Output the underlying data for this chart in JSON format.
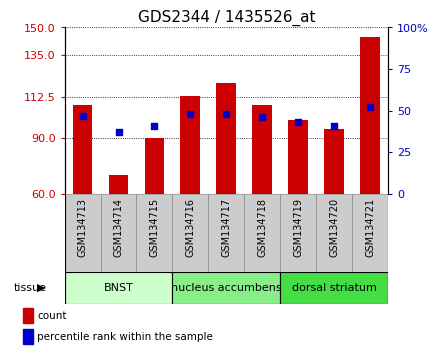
{
  "title": "GDS2344 / 1435526_at",
  "samples": [
    "GSM134713",
    "GSM134714",
    "GSM134715",
    "GSM134716",
    "GSM134717",
    "GSM134718",
    "GSM134719",
    "GSM134720",
    "GSM134721"
  ],
  "count_values": [
    108,
    70,
    90,
    113,
    120,
    108,
    100,
    95,
    145
  ],
  "percentile_values": [
    47,
    37,
    41,
    48,
    48,
    46,
    43,
    41,
    52
  ],
  "ylim_left": [
    60,
    150
  ],
  "ylim_right": [
    0,
    100
  ],
  "yticks_left": [
    60,
    90,
    112.5,
    135,
    150
  ],
  "yticks_right": [
    0,
    25,
    50,
    75,
    100
  ],
  "ytick_labels_right": [
    "0",
    "25",
    "50",
    "75",
    "100%"
  ],
  "bar_color": "#cc0000",
  "dot_color": "#0000cc",
  "tissue_groups": [
    {
      "label": "BNST",
      "start": 0,
      "end": 3,
      "color": "#ccffcc"
    },
    {
      "label": "nucleus accumbens",
      "start": 3,
      "end": 6,
      "color": "#88ee88"
    },
    {
      "label": "dorsal striatum",
      "start": 6,
      "end": 9,
      "color": "#44dd44"
    }
  ],
  "legend_items": [
    {
      "label": "count",
      "color": "#cc0000"
    },
    {
      "label": "percentile rank within the sample",
      "color": "#0000cc"
    }
  ],
  "bar_width": 0.55,
  "title_fontsize": 11,
  "tick_fontsize": 8,
  "axis_label_color_left": "#cc0000",
  "axis_label_color_right": "#0000cc",
  "sample_label_fontsize": 7,
  "tissue_fontsize": 8
}
